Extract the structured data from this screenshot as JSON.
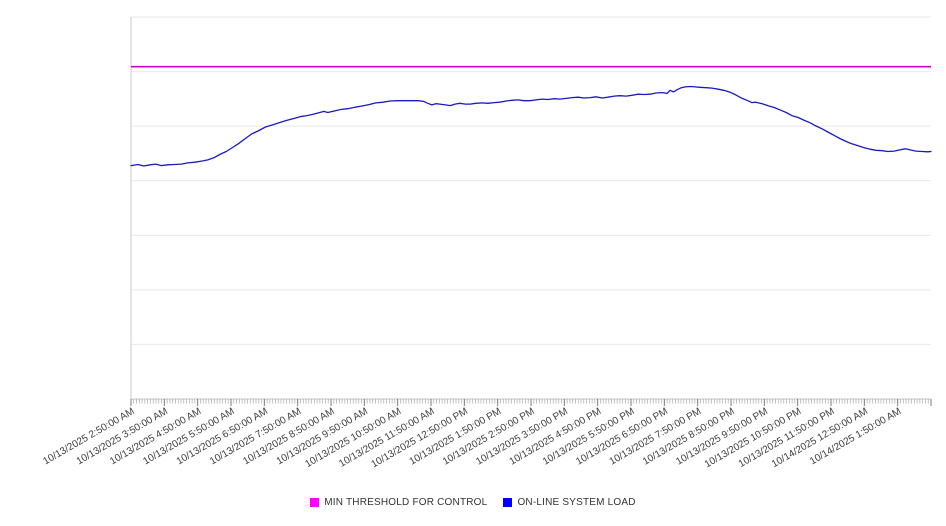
{
  "chart_data": {
    "type": "line",
    "title": "",
    "xlabel": "",
    "ylabel": "",
    "background_color": "#ffffff",
    "x_axis": {
      "start": "10/13/2025 2:50:00 AM",
      "end": "10/14/2025 2:50:00 AM",
      "label_interval_minutes": 60,
      "minor_tick_interval_minutes": 5,
      "label_rotation_deg": -30
    },
    "x_tick_labels": [
      "10/13/2025 2:50:00 AM",
      "10/13/2025 3:50:00 AM",
      "10/13/2025 4:50:00 AM",
      "10/13/2025 5:50:00 AM",
      "10/13/2025 6:50:00 AM",
      "10/13/2025 7:50:00 AM",
      "10/13/2025 8:50:00 AM",
      "10/13/2025 9:50:00 AM",
      "10/13/2025 10:50:00 AM",
      "10/13/2025 11:50:00 AM",
      "10/13/2025 12:50:00 PM",
      "10/13/2025 1:50:00 PM",
      "10/13/2025 2:50:00 PM",
      "10/13/2025 3:50:00 PM",
      "10/13/2025 4:50:00 PM",
      "10/13/2025 5:50:00 PM",
      "10/13/2025 6:50:00 PM",
      "10/13/2025 7:50:00 PM",
      "10/13/2025 8:50:00 PM",
      "10/13/2025 9:50:00 PM",
      "10/13/2025 10:50:00 PM",
      "10/13/2025 11:50:00 PM",
      "10/14/2025 12:50:00 AM",
      "10/14/2025 1:50:00 AM"
    ],
    "y_axis": {
      "labeled": false,
      "unit": "percent of plot height (no tick labels visible)",
      "ylim": [
        0,
        100
      ],
      "gridline_values": [
        0,
        14.29,
        28.57,
        42.86,
        57.14,
        71.43,
        85.71,
        100
      ]
    },
    "grid": "horizontal",
    "legend_position": "bottom-center",
    "series": [
      {
        "name": "MIN THRESHOLD FOR CONTROL",
        "type": "hline",
        "value": 87.0,
        "color": "#CC00CC",
        "legend_color": "#FF00FF"
      },
      {
        "name": "ON-LINE SYSTEM LOAD",
        "type": "line",
        "color": "#1A1AC4",
        "legend_color": "#0000FF",
        "points": [
          [
            0.0,
            61.1
          ],
          [
            0.009,
            61.4
          ],
          [
            0.016,
            61.0
          ],
          [
            0.024,
            61.3
          ],
          [
            0.031,
            61.5
          ],
          [
            0.038,
            61.1
          ],
          [
            0.046,
            61.3
          ],
          [
            0.054,
            61.4
          ],
          [
            0.063,
            61.5
          ],
          [
            0.071,
            61.8
          ],
          [
            0.08,
            62.0
          ],
          [
            0.089,
            62.3
          ],
          [
            0.096,
            62.6
          ],
          [
            0.104,
            63.2
          ],
          [
            0.111,
            64.0
          ],
          [
            0.119,
            64.8
          ],
          [
            0.126,
            65.7
          ],
          [
            0.134,
            66.8
          ],
          [
            0.143,
            68.2
          ],
          [
            0.151,
            69.4
          ],
          [
            0.16,
            70.3
          ],
          [
            0.168,
            71.2
          ],
          [
            0.176,
            71.7
          ],
          [
            0.185,
            72.3
          ],
          [
            0.194,
            72.9
          ],
          [
            0.203,
            73.4
          ],
          [
            0.211,
            73.9
          ],
          [
            0.22,
            74.2
          ],
          [
            0.229,
            74.6
          ],
          [
            0.236,
            75.0
          ],
          [
            0.241,
            75.3
          ],
          [
            0.246,
            75.0
          ],
          [
            0.254,
            75.4
          ],
          [
            0.263,
            75.8
          ],
          [
            0.271,
            76.0
          ],
          [
            0.28,
            76.4
          ],
          [
            0.289,
            76.7
          ],
          [
            0.298,
            77.1
          ],
          [
            0.306,
            77.5
          ],
          [
            0.315,
            77.7
          ],
          [
            0.324,
            78.0
          ],
          [
            0.333,
            78.1
          ],
          [
            0.341,
            78.1
          ],
          [
            0.35,
            78.1
          ],
          [
            0.359,
            78.1
          ],
          [
            0.366,
            77.9
          ],
          [
            0.371,
            77.4
          ],
          [
            0.376,
            77.0
          ],
          [
            0.381,
            77.3
          ],
          [
            0.386,
            77.2
          ],
          [
            0.393,
            77.0
          ],
          [
            0.399,
            76.8
          ],
          [
            0.405,
            77.2
          ],
          [
            0.411,
            77.4
          ],
          [
            0.418,
            77.2
          ],
          [
            0.424,
            77.2
          ],
          [
            0.431,
            77.4
          ],
          [
            0.439,
            77.5
          ],
          [
            0.446,
            77.4
          ],
          [
            0.454,
            77.6
          ],
          [
            0.461,
            77.7
          ],
          [
            0.469,
            78.0
          ],
          [
            0.476,
            78.2
          ],
          [
            0.484,
            78.3
          ],
          [
            0.491,
            78.1
          ],
          [
            0.499,
            78.1
          ],
          [
            0.506,
            78.3
          ],
          [
            0.514,
            78.5
          ],
          [
            0.521,
            78.4
          ],
          [
            0.529,
            78.6
          ],
          [
            0.536,
            78.5
          ],
          [
            0.544,
            78.7
          ],
          [
            0.551,
            78.9
          ],
          [
            0.559,
            79.0
          ],
          [
            0.566,
            78.8
          ],
          [
            0.574,
            78.9
          ],
          [
            0.581,
            79.1
          ],
          [
            0.589,
            78.8
          ],
          [
            0.596,
            79.0
          ],
          [
            0.604,
            79.3
          ],
          [
            0.611,
            79.4
          ],
          [
            0.619,
            79.3
          ],
          [
            0.626,
            79.5
          ],
          [
            0.634,
            79.8
          ],
          [
            0.641,
            79.7
          ],
          [
            0.649,
            79.8
          ],
          [
            0.656,
            80.1
          ],
          [
            0.664,
            80.2
          ],
          [
            0.67,
            80.0
          ],
          [
            0.674,
            80.8
          ],
          [
            0.678,
            80.4
          ],
          [
            0.683,
            81.0
          ],
          [
            0.688,
            81.5
          ],
          [
            0.693,
            81.7
          ],
          [
            0.699,
            81.8
          ],
          [
            0.705,
            81.7
          ],
          [
            0.711,
            81.6
          ],
          [
            0.719,
            81.5
          ],
          [
            0.726,
            81.4
          ],
          [
            0.734,
            81.1
          ],
          [
            0.741,
            80.8
          ],
          [
            0.749,
            80.3
          ],
          [
            0.756,
            79.6
          ],
          [
            0.764,
            78.7
          ],
          [
            0.771,
            78.1
          ],
          [
            0.776,
            77.6
          ],
          [
            0.781,
            77.7
          ],
          [
            0.789,
            77.3
          ],
          [
            0.796,
            76.8
          ],
          [
            0.804,
            76.3
          ],
          [
            0.811,
            75.7
          ],
          [
            0.819,
            75.0
          ],
          [
            0.826,
            74.2
          ],
          [
            0.834,
            73.7
          ],
          [
            0.841,
            73.0
          ],
          [
            0.849,
            72.3
          ],
          [
            0.856,
            71.5
          ],
          [
            0.864,
            70.7
          ],
          [
            0.871,
            69.9
          ],
          [
            0.879,
            69.0
          ],
          [
            0.886,
            68.2
          ],
          [
            0.894,
            67.4
          ],
          [
            0.901,
            66.8
          ],
          [
            0.909,
            66.3
          ],
          [
            0.916,
            65.8
          ],
          [
            0.924,
            65.4
          ],
          [
            0.931,
            65.1
          ],
          [
            0.939,
            65.0
          ],
          [
            0.946,
            64.8
          ],
          [
            0.954,
            64.9
          ],
          [
            0.961,
            65.2
          ],
          [
            0.968,
            65.5
          ],
          [
            0.974,
            65.2
          ],
          [
            0.981,
            64.9
          ],
          [
            0.989,
            64.8
          ],
          [
            0.996,
            64.7
          ],
          [
            1.0,
            64.8
          ]
        ]
      }
    ]
  },
  "legend": {
    "items": [
      {
        "label": "MIN THRESHOLD FOR CONTROL",
        "swatch_color": "#FF00FF"
      },
      {
        "label": "ON-LINE SYSTEM LOAD",
        "swatch_color": "#0000FF"
      }
    ]
  }
}
